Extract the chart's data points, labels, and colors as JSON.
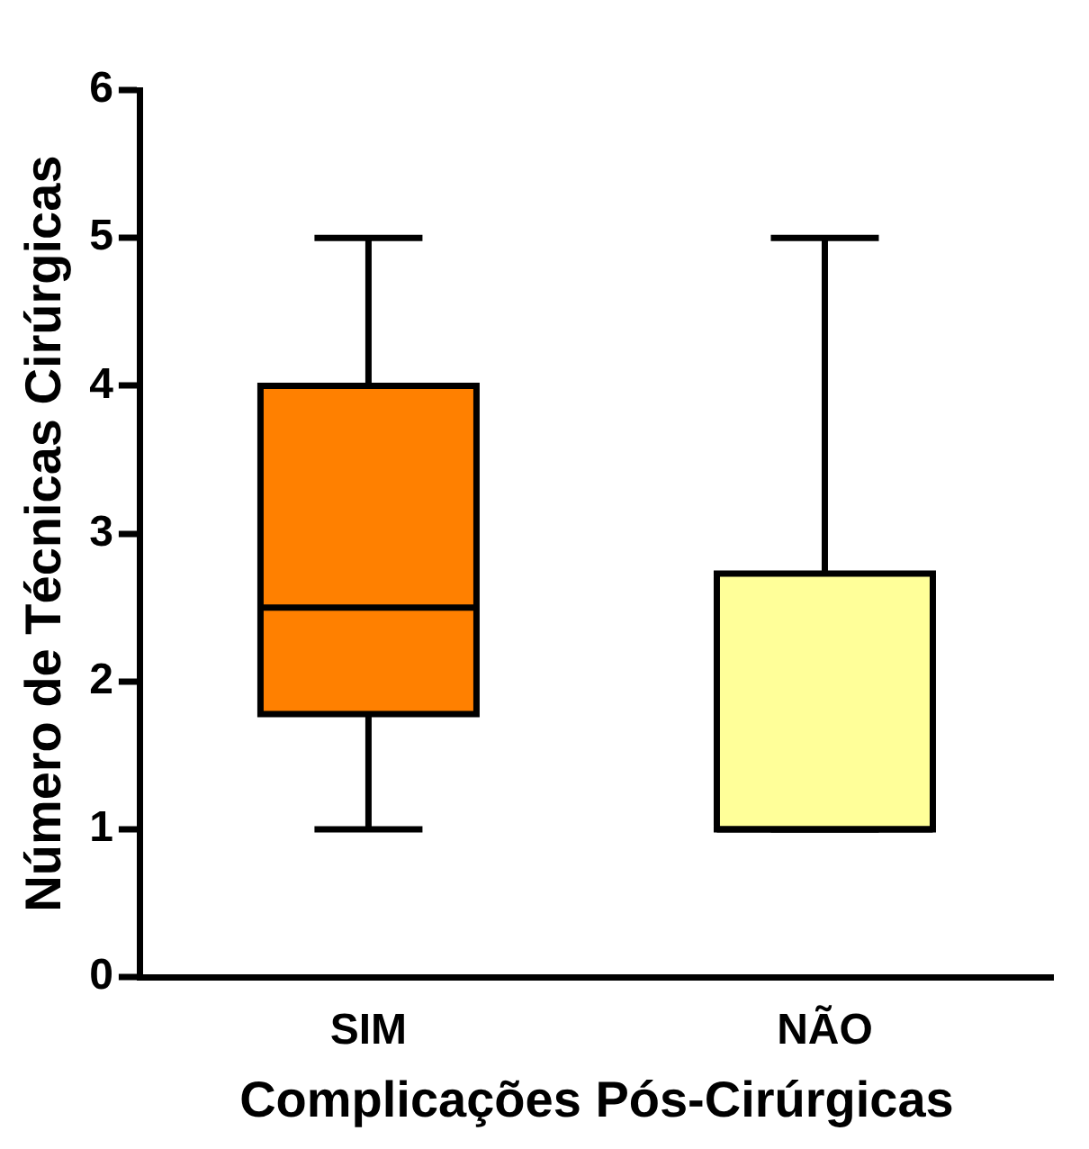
{
  "chart_data": {
    "type": "box",
    "xlabel": "Complicações Pós-Cirúrgicas",
    "ylabel": "Número de Técnicas Cirúrgicas",
    "categories": [
      "SIM",
      "NÃO"
    ],
    "boxes": [
      {
        "low": 1,
        "q1": 1.78,
        "median": 2.5,
        "q3": 4,
        "high": 5
      },
      {
        "low": 1,
        "q1": 1,
        "median": 1,
        "q3": 2.73,
        "high": 5
      }
    ],
    "colors": [
      "#ff8000",
      "#ffff99"
    ],
    "ylim": [
      0,
      6
    ],
    "yticks": [
      0,
      1,
      2,
      3,
      4,
      5,
      6
    ],
    "grid": false
  }
}
